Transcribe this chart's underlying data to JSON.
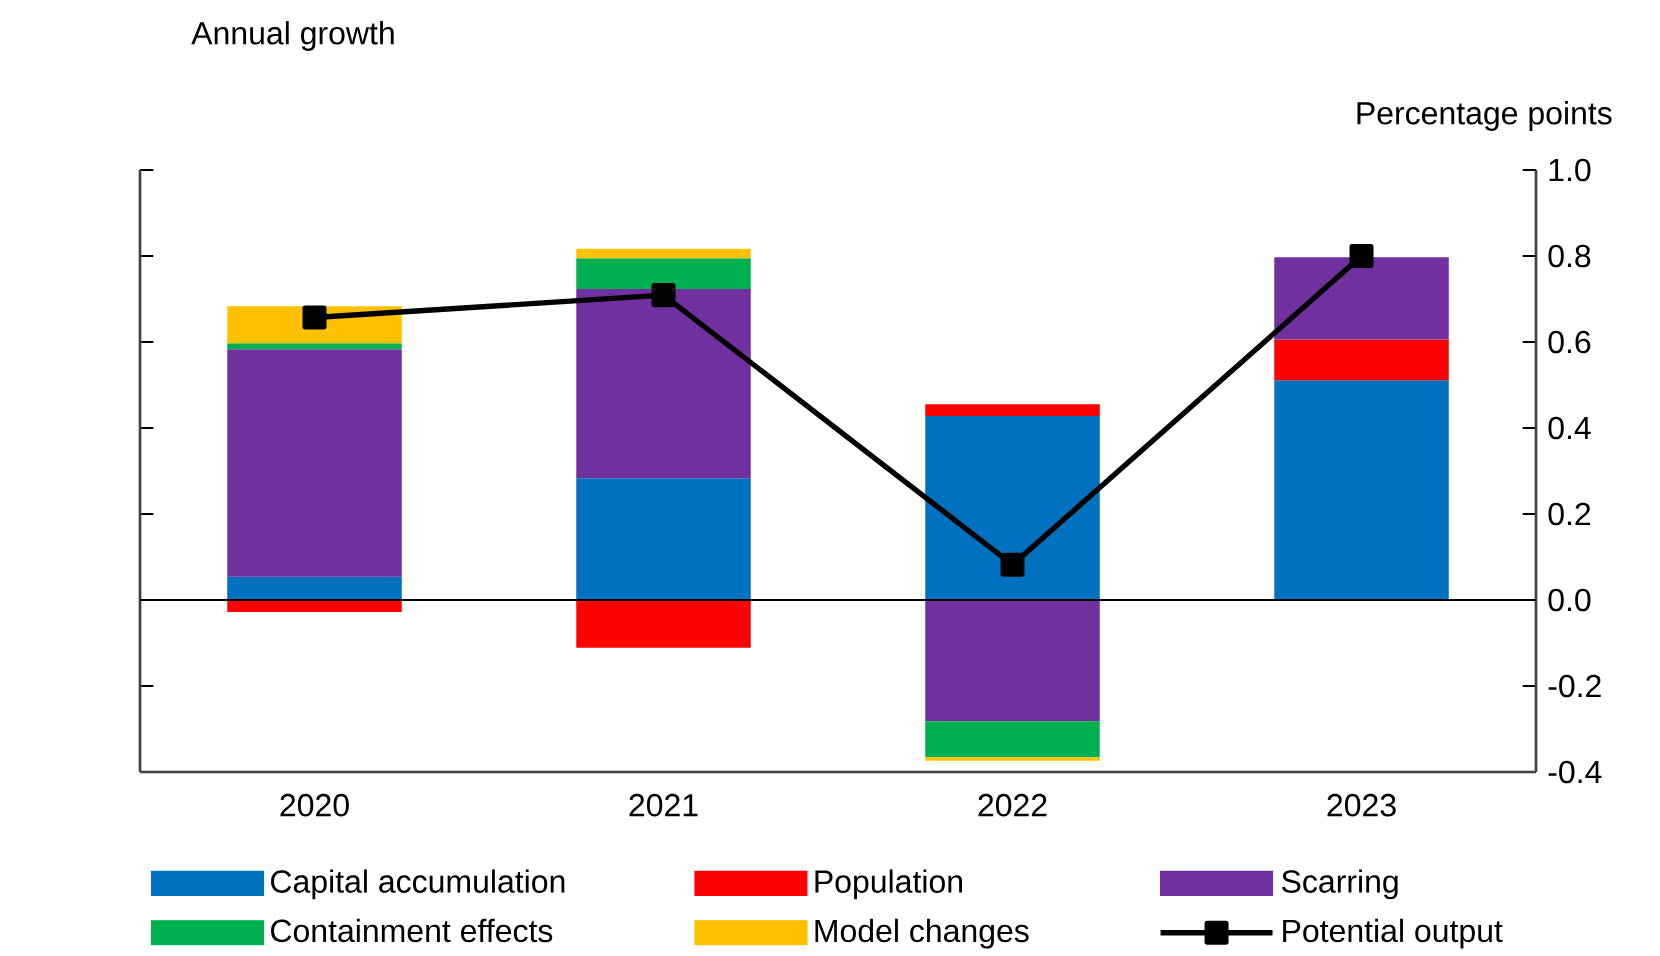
{
  "chart_data": {
    "type": "bar",
    "stacked": true,
    "subtitle": "Annual growth",
    "ylabel": "Percentage points",
    "categories": [
      "2020",
      "2021",
      "2022",
      "2023"
    ],
    "series": [
      {
        "name": "Capital accumulation",
        "color": "#0070c0",
        "values": [
          0.054,
          0.283,
          0.428,
          0.511
        ]
      },
      {
        "name": "Population",
        "color": "#ff0000",
        "values": [
          -0.028,
          -0.111,
          0.027,
          0.095
        ]
      },
      {
        "name": "Scarring",
        "color": "#7030a0",
        "values": [
          0.529,
          0.44,
          -0.282,
          0.191
        ]
      },
      {
        "name": "Containment effects",
        "color": "#00b050",
        "values": [
          0.014,
          0.072,
          -0.084,
          null
        ]
      },
      {
        "name": "Model changes",
        "color": "#ffc000",
        "values": [
          0.086,
          0.022,
          -0.008,
          null
        ]
      },
      {
        "name": "Potential output",
        "type": "line",
        "marker": "square",
        "color": "#000000",
        "values": [
          0.657,
          0.709,
          0.082,
          0.8
        ]
      }
    ],
    "ylim": [
      -0.4,
      1.0
    ],
    "yticks": [
      {
        "value": -0.4,
        "label": "-0.4"
      },
      {
        "value": -0.2,
        "label": "-0.2"
      },
      {
        "value": 0,
        "label": "0.0"
      },
      {
        "value": 0.2,
        "label": "0.2"
      },
      {
        "value": 0.4,
        "label": "0.4"
      },
      {
        "value": 0.6,
        "label": "0.6"
      },
      {
        "value": 0.8,
        "label": "0.8"
      },
      {
        "value": 1.0,
        "label": "1.0"
      }
    ],
    "ref_lines": [
      {
        "axis": "y",
        "value": 0,
        "color": "#000000"
      }
    ],
    "legend": "bottom"
  }
}
